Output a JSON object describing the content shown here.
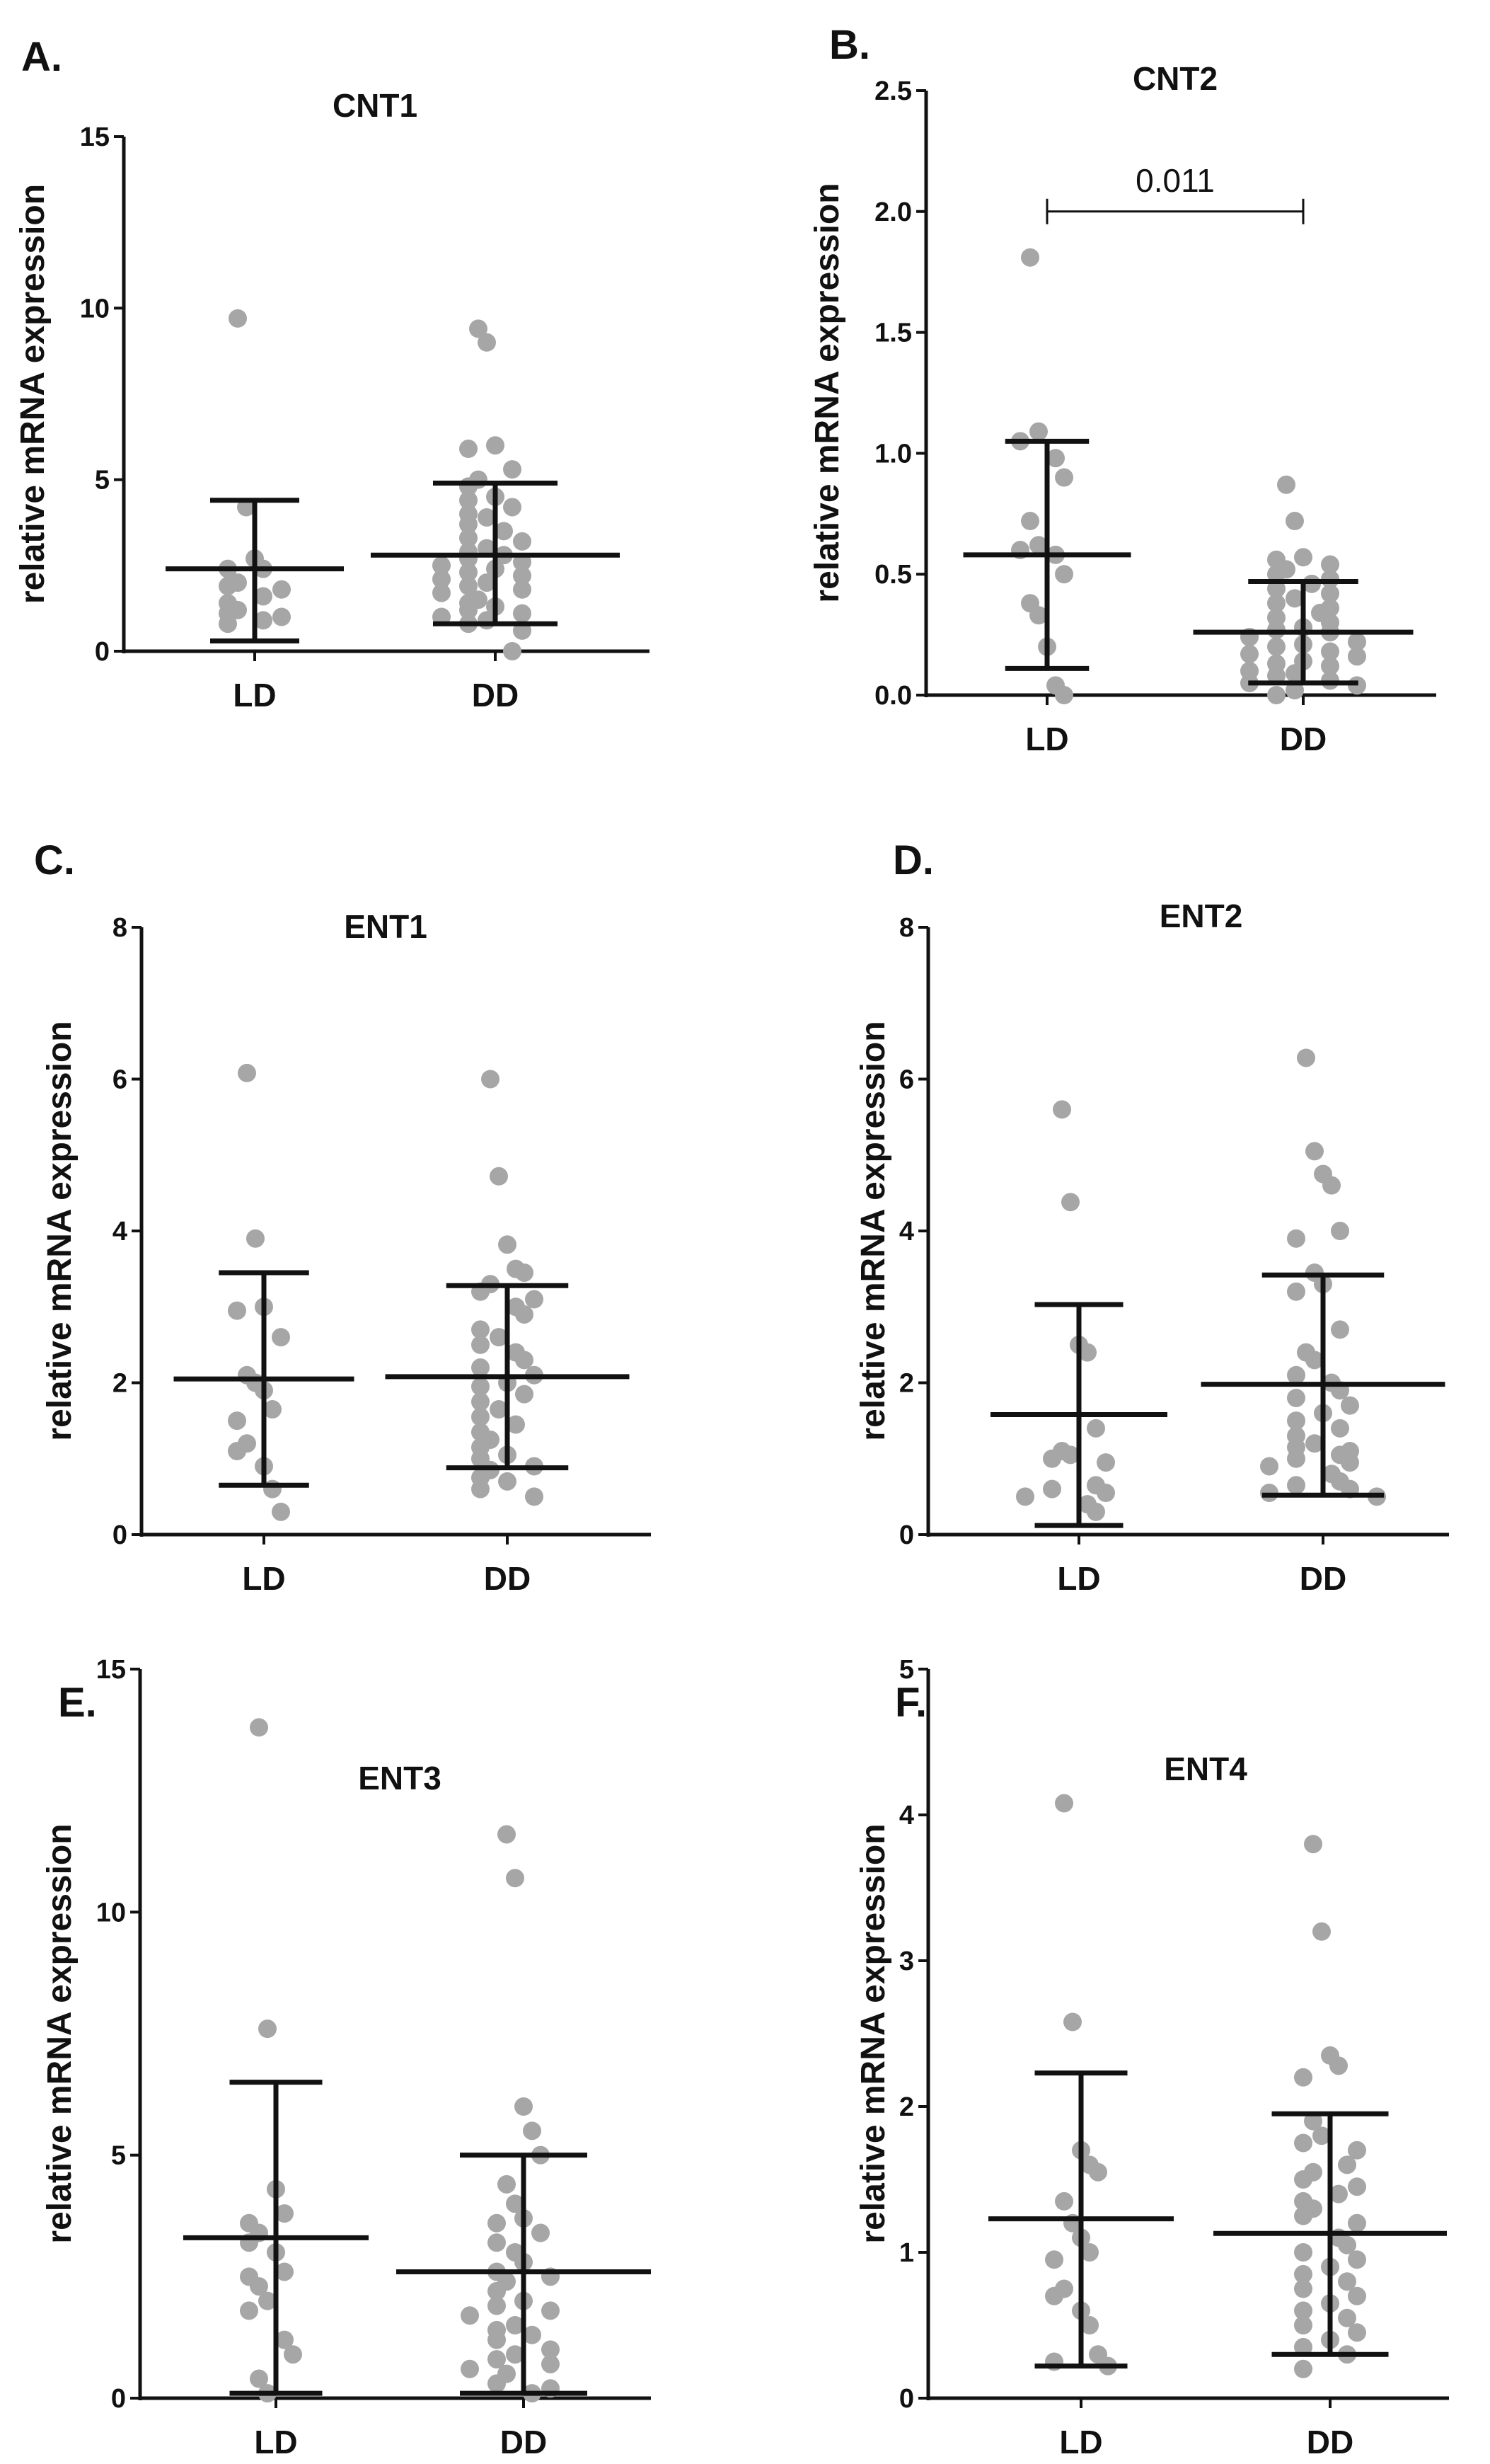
{
  "colors": {
    "point": "#a6a6a6",
    "axis": "#111111",
    "errorbar": "#111111"
  },
  "chart_data": [
    {
      "panel": "A.",
      "type": "scatter",
      "title": "CNT1",
      "ylabel": "relative mRNA expression",
      "xlabel": "",
      "categories": [
        "LD",
        "DD"
      ],
      "ylim": [
        0,
        15
      ],
      "yticks": [
        0,
        5,
        10,
        15
      ],
      "series": [
        {
          "name": "LD",
          "mean": 2.4,
          "sd_low": 0.3,
          "sd_high": 4.4,
          "values": [
            9.7,
            4.2,
            2.7,
            2.4,
            2.4,
            2.0,
            1.9,
            1.8,
            1.6,
            1.4,
            1.2,
            1.1,
            1.0,
            0.9,
            0.8
          ]
        },
        {
          "name": "DD",
          "mean": 2.8,
          "sd_low": 0.8,
          "sd_high": 4.9,
          "values": [
            9.4,
            9.0,
            6.0,
            5.9,
            5.3,
            5.0,
            4.8,
            4.5,
            4.4,
            4.2,
            4.0,
            3.9,
            3.7,
            3.5,
            3.3,
            3.2,
            3.0,
            2.9,
            2.8,
            2.7,
            2.6,
            2.5,
            2.4,
            2.3,
            2.2,
            2.1,
            2.0,
            1.9,
            1.8,
            1.7,
            1.5,
            1.4,
            1.3,
            1.2,
            1.1,
            1.0,
            0.9,
            0.8,
            0.6,
            0.0
          ]
        }
      ],
      "annotations": []
    },
    {
      "panel": "B.",
      "type": "scatter",
      "title": "CNT2",
      "ylabel": "relative mRNA expression",
      "xlabel": "",
      "categories": [
        "LD",
        "DD"
      ],
      "ylim": [
        0,
        2.5
      ],
      "yticks": [
        "0.0",
        "0.5",
        "1.0",
        "1.5",
        "2.0",
        "2.5"
      ],
      "series": [
        {
          "name": "LD",
          "mean": 0.58,
          "sd_low": 0.11,
          "sd_high": 1.05,
          "values": [
            1.81,
            1.09,
            1.05,
            0.98,
            0.9,
            0.72,
            0.62,
            0.6,
            0.58,
            0.5,
            0.38,
            0.33,
            0.2,
            0.04,
            0.0
          ]
        },
        {
          "name": "DD",
          "mean": 0.26,
          "sd_low": 0.05,
          "sd_high": 0.47,
          "values": [
            0.87,
            0.72,
            0.57,
            0.56,
            0.54,
            0.52,
            0.5,
            0.48,
            0.46,
            0.44,
            0.42,
            0.4,
            0.38,
            0.36,
            0.34,
            0.32,
            0.3,
            0.28,
            0.27,
            0.26,
            0.24,
            0.22,
            0.21,
            0.2,
            0.18,
            0.17,
            0.16,
            0.14,
            0.13,
            0.12,
            0.1,
            0.09,
            0.08,
            0.06,
            0.05,
            0.04,
            0.02,
            0.0
          ]
        }
      ],
      "annotations": [
        {
          "text": "0.011",
          "y": 2.0
        }
      ]
    },
    {
      "panel": "C.",
      "type": "scatter",
      "title": "ENT1",
      "ylabel": "relative mRNA expression",
      "xlabel": "",
      "categories": [
        "LD",
        "DD"
      ],
      "ylim": [
        0,
        8
      ],
      "yticks": [
        0,
        2,
        4,
        6,
        8
      ],
      "series": [
        {
          "name": "LD",
          "mean": 2.05,
          "sd_low": 0.65,
          "sd_high": 3.45,
          "values": [
            6.08,
            3.9,
            3.0,
            2.95,
            2.6,
            2.1,
            2.0,
            1.9,
            1.65,
            1.5,
            1.2,
            1.1,
            0.9,
            0.6,
            0.3
          ]
        },
        {
          "name": "DD",
          "mean": 2.08,
          "sd_low": 0.88,
          "sd_high": 3.28,
          "values": [
            6.0,
            4.72,
            3.82,
            3.5,
            3.45,
            3.3,
            3.2,
            3.1,
            3.0,
            2.9,
            2.7,
            2.6,
            2.5,
            2.4,
            2.3,
            2.2,
            2.1,
            2.0,
            1.95,
            1.85,
            1.75,
            1.65,
            1.55,
            1.45,
            1.35,
            1.25,
            1.15,
            1.05,
            1.0,
            0.9,
            0.85,
            0.75,
            0.7,
            0.6,
            0.5
          ]
        }
      ],
      "annotations": []
    },
    {
      "panel": "D.",
      "type": "scatter",
      "title": "ENT2",
      "ylabel": "relative mRNA expression",
      "xlabel": "",
      "categories": [
        "LD",
        "DD"
      ],
      "ylim": [
        0,
        8
      ],
      "yticks": [
        0,
        2,
        4,
        6,
        8
      ],
      "series": [
        {
          "name": "LD",
          "mean": 1.58,
          "sd_low": 0.12,
          "sd_high": 3.03,
          "values": [
            5.6,
            4.38,
            2.5,
            2.4,
            1.4,
            1.1,
            1.05,
            1.0,
            0.95,
            0.65,
            0.6,
            0.55,
            0.5,
            0.4,
            0.3
          ]
        },
        {
          "name": "DD",
          "mean": 1.98,
          "sd_low": 0.52,
          "sd_high": 3.42,
          "values": [
            6.28,
            5.05,
            4.75,
            4.6,
            4.0,
            3.9,
            3.45,
            3.3,
            3.2,
            2.7,
            2.4,
            2.3,
            2.1,
            2.0,
            1.9,
            1.8,
            1.7,
            1.6,
            1.5,
            1.4,
            1.3,
            1.2,
            1.15,
            1.1,
            1.05,
            1.0,
            0.95,
            0.9,
            0.8,
            0.7,
            0.65,
            0.6,
            0.55,
            0.5
          ]
        }
      ],
      "annotations": []
    },
    {
      "panel": "E.",
      "type": "scatter",
      "title": "ENT3",
      "ylabel": "relative mRNA expression",
      "xlabel": "",
      "categories": [
        "LD",
        "DD"
      ],
      "ylim": [
        0,
        15
      ],
      "yticks": [
        0,
        5,
        10,
        15
      ],
      "series": [
        {
          "name": "LD",
          "mean": 3.3,
          "sd_low": 0.1,
          "sd_high": 6.5,
          "values": [
            13.8,
            7.6,
            4.3,
            3.8,
            3.6,
            3.4,
            3.2,
            3.0,
            2.6,
            2.5,
            2.3,
            2.0,
            1.8,
            1.2,
            0.9,
            0.4,
            0.1
          ]
        },
        {
          "name": "DD",
          "mean": 2.6,
          "sd_low": 0.1,
          "sd_high": 5.0,
          "values": [
            11.6,
            10.7,
            6.0,
            5.5,
            5.0,
            4.4,
            4.0,
            3.7,
            3.6,
            3.4,
            3.2,
            3.0,
            2.8,
            2.6,
            2.5,
            2.4,
            2.2,
            2.0,
            1.9,
            1.8,
            1.7,
            1.5,
            1.4,
            1.3,
            1.2,
            1.0,
            0.9,
            0.8,
            0.7,
            0.6,
            0.5,
            0.3,
            0.2,
            0.1
          ]
        }
      ],
      "annotations": []
    },
    {
      "panel": "F.",
      "type": "scatter",
      "title": "ENT4",
      "ylabel": "relative mRNA expression",
      "xlabel": "",
      "categories": [
        "LD",
        "DD"
      ],
      "ylim": [
        0,
        5
      ],
      "yticks": [
        0,
        1,
        2,
        3,
        4,
        5
      ],
      "series": [
        {
          "name": "LD",
          "mean": 1.23,
          "sd_low": 0.22,
          "sd_high": 2.23,
          "values": [
            4.08,
            2.58,
            1.7,
            1.6,
            1.55,
            1.35,
            1.2,
            1.1,
            1.0,
            0.95,
            0.75,
            0.7,
            0.6,
            0.5,
            0.3,
            0.25,
            0.22
          ]
        },
        {
          "name": "DD",
          "mean": 1.13,
          "sd_low": 0.3,
          "sd_high": 1.95,
          "values": [
            3.8,
            3.2,
            2.35,
            2.28,
            2.2,
            1.9,
            1.8,
            1.75,
            1.7,
            1.6,
            1.55,
            1.5,
            1.45,
            1.4,
            1.35,
            1.3,
            1.25,
            1.2,
            1.1,
            1.05,
            1.0,
            0.95,
            0.9,
            0.85,
            0.8,
            0.75,
            0.7,
            0.65,
            0.6,
            0.55,
            0.5,
            0.45,
            0.4,
            0.35,
            0.3,
            0.2
          ]
        }
      ],
      "annotations": []
    }
  ]
}
